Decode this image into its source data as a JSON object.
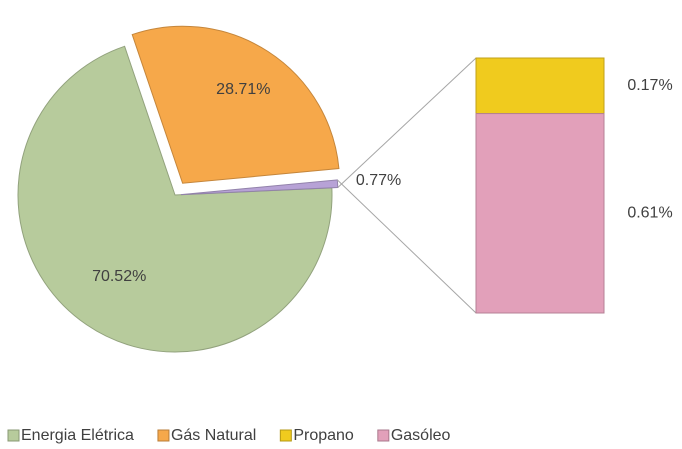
{
  "chart_data": {
    "type": "pie-of-bar",
    "categories": [
      "Energia Elétrica",
      "Gás Natural",
      null
    ],
    "values": [
      70.52,
      28.71,
      0.77
    ],
    "value_labels": [
      "70.52%",
      "28.71%",
      "0.77%"
    ],
    "colors": [
      "#b7cb9c",
      "#f6a84a",
      "#b7a2d6"
    ],
    "bar_categories": [
      "Propano",
      "Gasóleo"
    ],
    "bar_values": [
      0.17,
      0.61
    ],
    "bar_value_labels": [
      "0.17%",
      "0.61%"
    ],
    "bar_colors": [
      "#f0cb1e",
      "#e2a0ba"
    ],
    "legend": "bottom"
  }
}
